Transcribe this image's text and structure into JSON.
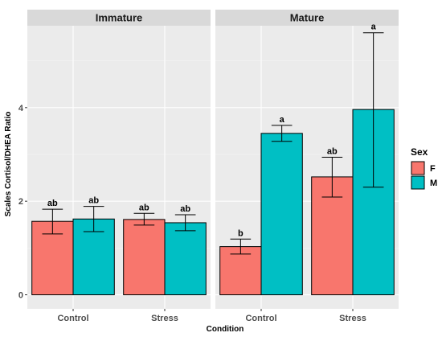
{
  "chart_data": {
    "type": "bar",
    "xlabel": "Condition",
    "ylabel": "Scales Cortisol/DHEA Ratio",
    "ylim": [
      -0.3,
      5.75
    ],
    "yticks": [
      0,
      2,
      4
    ],
    "categories": [
      "Control",
      "Stress"
    ],
    "grid": true,
    "legend": {
      "title": "Sex",
      "position": "right",
      "items": [
        {
          "label": "F",
          "color": "#F8766D"
        },
        {
          "label": "M",
          "color": "#00BFC4"
        }
      ]
    },
    "panels": [
      {
        "title": "Immature",
        "series": [
          {
            "name": "F",
            "color": "#F8766D",
            "values": [
              1.57,
              1.61
            ],
            "err_low": [
              1.3,
              1.49
            ],
            "err_high": [
              1.83,
              1.74
            ],
            "labels": [
              "ab",
              "ab"
            ]
          },
          {
            "name": "M",
            "color": "#00BFC4",
            "values": [
              1.62,
              1.54
            ],
            "err_low": [
              1.35,
              1.37
            ],
            "err_high": [
              1.89,
              1.71
            ],
            "labels": [
              "ab",
              "ab"
            ]
          }
        ]
      },
      {
        "title": "Mature",
        "series": [
          {
            "name": "F",
            "color": "#F8766D",
            "values": [
              1.03,
              2.52
            ],
            "err_low": [
              0.87,
              2.09
            ],
            "err_high": [
              1.19,
              2.94
            ],
            "labels": [
              "b",
              "ab"
            ]
          },
          {
            "name": "M",
            "color": "#00BFC4",
            "values": [
              3.45,
              3.96
            ],
            "err_low": [
              3.28,
              2.3
            ],
            "err_high": [
              3.62,
              5.6
            ],
            "labels": [
              "a",
              "a"
            ]
          }
        ]
      }
    ]
  }
}
